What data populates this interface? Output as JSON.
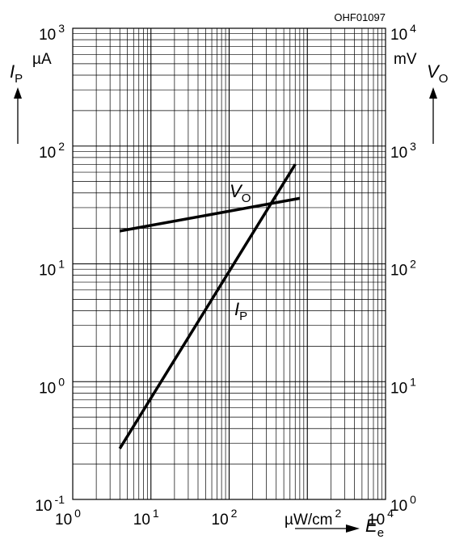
{
  "chart_data": {
    "type": "line",
    "figure_code": "OHF01097",
    "x_axis": {
      "scale": "log",
      "range": [
        1,
        10000
      ],
      "tick_labels": [
        {
          "base": "10",
          "exp": "0"
        },
        {
          "base": "10",
          "exp": "1"
        },
        {
          "base": "10",
          "exp": "2"
        },
        {
          "base": "",
          "exp": ""
        },
        {
          "base": "10",
          "exp": "4"
        }
      ],
      "unit": {
        "base": "µW/cm",
        "exp": "2"
      },
      "symbol": "E",
      "symbol_sub": "e"
    },
    "y_axis_left": {
      "scale": "log",
      "range": [
        0.1,
        1000
      ],
      "tick_labels": [
        {
          "base": "10",
          "exp": "-1"
        },
        {
          "base": "10",
          "exp": "0"
        },
        {
          "base": "10",
          "exp": "1"
        },
        {
          "base": "10",
          "exp": "2"
        },
        {
          "base": "10",
          "exp": "3"
        }
      ],
      "unit": "µA",
      "symbol": "I",
      "symbol_sub": "P"
    },
    "y_axis_right": {
      "scale": "log",
      "range": [
        1,
        10000
      ],
      "tick_labels": [
        {
          "base": "10",
          "exp": "0"
        },
        {
          "base": "10",
          "exp": "1"
        },
        {
          "base": "10",
          "exp": "2"
        },
        {
          "base": "10",
          "exp": "3"
        },
        {
          "base": "10",
          "exp": "4"
        }
      ],
      "unit": "mV",
      "symbol": "V",
      "symbol_sub": "O"
    },
    "grid": true,
    "series": [
      {
        "name": "I",
        "name_sub": "P",
        "axis": "left",
        "x": [
          4,
          700
        ],
        "y": [
          0.27,
          70
        ]
      },
      {
        "name": "V",
        "name_sub": "O",
        "axis": "right",
        "x": [
          4,
          800
        ],
        "y": [
          190,
          360
        ]
      }
    ]
  }
}
